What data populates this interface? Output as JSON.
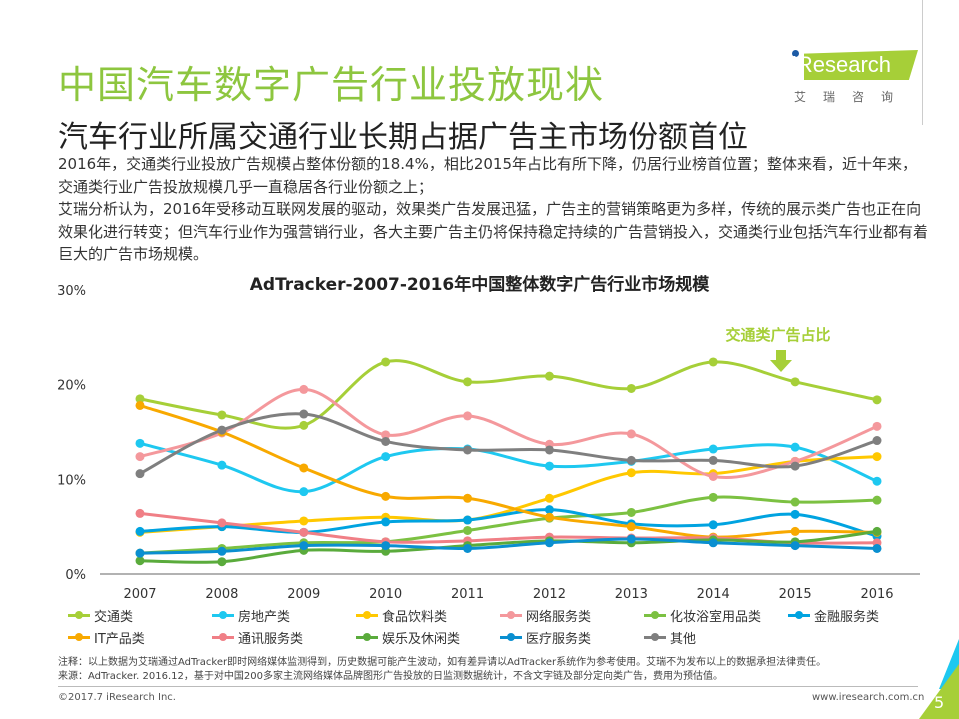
{
  "header": {
    "title": "中国汽车数字广告行业投放现状",
    "subtitle": "汽车行业所属交通行业长期占据广告主市场份额首位",
    "paragraphs": [
      "2016年，交通类行业投放广告规模占整体份额的18.4%，相比2015年占比有所下降，仍居行业榜首位置；整体来看，近十年来，交通类行业广告投放规模几乎一直稳居各行业份额之上；",
      "艾瑞分析认为，2016年受移动互联网发展的驱动，效果类广告发展迅猛，广告主的营销策略更为多样，传统的展示类广告也正在向效果化进行转变；但汽车行业作为强营销行业，各大主要广告主仍将保持稳定持续的广告营销投入，交通类行业包括汽车行业都有着巨大的广告市场规模。"
    ]
  },
  "logo": {
    "brand": "iResearch",
    "cn": "艾瑞咨询"
  },
  "chart_data": {
    "type": "line",
    "title": "AdTracker-2007-2016年中国整体数字广告行业市场规模",
    "xlabel": "",
    "ylabel": "",
    "x": [
      "2007",
      "2008",
      "2009",
      "2010",
      "2011",
      "2012",
      "2013",
      "2014",
      "2015",
      "2016"
    ],
    "ylim": [
      0,
      30
    ],
    "yticks": [
      "0%",
      "10%",
      "20%",
      "30%"
    ],
    "annotation": "交通类广告占比",
    "legend_position": "bottom",
    "series": [
      {
        "name": "交通类",
        "color": "#a6cf38",
        "values": [
          18.5,
          16.8,
          15.7,
          22.4,
          20.3,
          20.9,
          19.6,
          22.4,
          20.3,
          18.4
        ]
      },
      {
        "name": "房地产类",
        "color": "#1ec8f0",
        "values": [
          13.8,
          11.5,
          8.7,
          12.4,
          13.2,
          11.4,
          11.9,
          13.2,
          13.4,
          9.8
        ]
      },
      {
        "name": "食品饮料类",
        "color": "#ffc800",
        "values": [
          4.4,
          5.0,
          5.6,
          6.0,
          5.7,
          8.0,
          10.7,
          10.6,
          11.9,
          12.4
        ]
      },
      {
        "name": "网络服务类",
        "color": "#f4989c",
        "values": [
          12.4,
          14.9,
          19.5,
          14.7,
          16.7,
          13.7,
          14.8,
          10.3,
          11.9,
          15.6
        ]
      },
      {
        "name": "化妆浴室用品类",
        "color": "#7cc142",
        "values": [
          2.2,
          2.7,
          3.3,
          3.4,
          4.6,
          5.9,
          6.5,
          8.1,
          7.6,
          7.8
        ]
      },
      {
        "name": "金融服务类",
        "color": "#00a3e0",
        "values": [
          4.5,
          5.0,
          4.4,
          5.5,
          5.7,
          6.8,
          5.3,
          5.2,
          6.3,
          4.0
        ]
      },
      {
        "name": "IT产品类",
        "color": "#f8a900",
        "values": [
          17.8,
          15.0,
          11.2,
          8.2,
          8.0,
          6.0,
          5.0,
          3.9,
          4.5,
          4.4
        ]
      },
      {
        "name": "通讯服务类",
        "color": "#f07f86",
        "values": [
          6.4,
          5.4,
          4.4,
          3.4,
          3.5,
          3.9,
          3.8,
          3.8,
          3.3,
          3.3
        ]
      },
      {
        "name": "娱乐及休闲类",
        "color": "#5aab3c",
        "values": [
          1.4,
          1.3,
          2.5,
          2.4,
          3.0,
          3.5,
          3.3,
          3.6,
          3.4,
          4.5
        ]
      },
      {
        "name": "医疗服务类",
        "color": "#0a8fd0",
        "values": [
          2.2,
          2.4,
          3.0,
          3.0,
          2.7,
          3.3,
          3.7,
          3.3,
          3.0,
          2.7
        ]
      },
      {
        "name": "其他",
        "color": "#7f7f7f",
        "values": [
          10.6,
          15.2,
          16.9,
          14.0,
          13.1,
          13.1,
          12.0,
          12.0,
          11.4,
          14.1
        ]
      }
    ]
  },
  "footer": {
    "note": "注释：以上数据为艾瑞通过AdTracker即时网络媒体监测得到，历史数据可能产生波动，如有差异请以AdTracker系统作为参考使用。艾瑞不为发布以上的数据承担法律责任。",
    "source": "来源：AdTracker. 2016.12，基于对中国200多家主流网络媒体品牌图形广告投放的日监测数据统计，不含文字链及部分定向类广告，费用为预估值。",
    "copyright": "©2017.7 iResearch Inc.",
    "url": "www.iresearch.com.cn",
    "page": "5"
  }
}
